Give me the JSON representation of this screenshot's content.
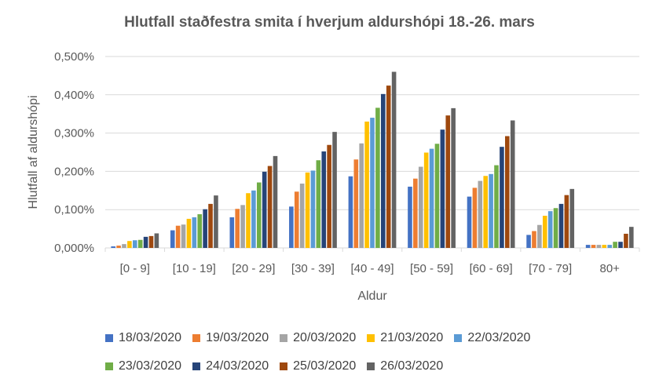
{
  "chart_data": {
    "type": "bar",
    "title": "Hlutfall staðfestra smita í hverjum aldurshópi  18.-26. mars",
    "xlabel": "Aldur",
    "ylabel": "Hlutfall af aldurshópi",
    "ylim": [
      0,
      0.5
    ],
    "yticks": [
      "0,000%",
      "0,100%",
      "0,200%",
      "0,300%",
      "0,400%",
      "0,500%"
    ],
    "grid": true,
    "legend_position": "bottom",
    "categories": [
      "[0 - 9]",
      "[10 - 19]",
      "[20 - 29]",
      "[30 - 39]",
      "[40 - 49]",
      "[50 - 59]",
      "[60 - 69]",
      "[70 - 79]",
      "80+"
    ],
    "series": [
      {
        "name": "18/03/2020",
        "color": "#4472C4",
        "values": [
          0.004,
          0.046,
          0.08,
          0.108,
          0.187,
          0.16,
          0.134,
          0.034,
          0.008
        ]
      },
      {
        "name": "19/03/2020",
        "color": "#ED7D31",
        "values": [
          0.006,
          0.058,
          0.102,
          0.147,
          0.231,
          0.181,
          0.157,
          0.044,
          0.008
        ]
      },
      {
        "name": "20/03/2020",
        "color": "#A5A5A5",
        "values": [
          0.01,
          0.061,
          0.112,
          0.168,
          0.273,
          0.212,
          0.175,
          0.06,
          0.008
        ]
      },
      {
        "name": "21/03/2020",
        "color": "#FFC000",
        "values": [
          0.018,
          0.076,
          0.143,
          0.197,
          0.33,
          0.249,
          0.188,
          0.084,
          0.008
        ]
      },
      {
        "name": "22/03/2020",
        "color": "#5B9BD5",
        "values": [
          0.02,
          0.08,
          0.15,
          0.202,
          0.34,
          0.259,
          0.193,
          0.096,
          0.008
        ]
      },
      {
        "name": "23/03/2020",
        "color": "#70AD47",
        "values": [
          0.021,
          0.088,
          0.171,
          0.229,
          0.366,
          0.272,
          0.216,
          0.104,
          0.016
        ]
      },
      {
        "name": "24/03/2020",
        "color": "#264478",
        "values": [
          0.029,
          0.101,
          0.199,
          0.252,
          0.402,
          0.309,
          0.264,
          0.115,
          0.016
        ]
      },
      {
        "name": "25/03/2020",
        "color": "#9E480E",
        "values": [
          0.031,
          0.115,
          0.214,
          0.269,
          0.424,
          0.346,
          0.292,
          0.138,
          0.037
        ]
      },
      {
        "name": "26/03/2020",
        "color": "#636363",
        "values": [
          0.038,
          0.137,
          0.24,
          0.303,
          0.46,
          0.365,
          0.333,
          0.154,
          0.055
        ]
      }
    ]
  }
}
